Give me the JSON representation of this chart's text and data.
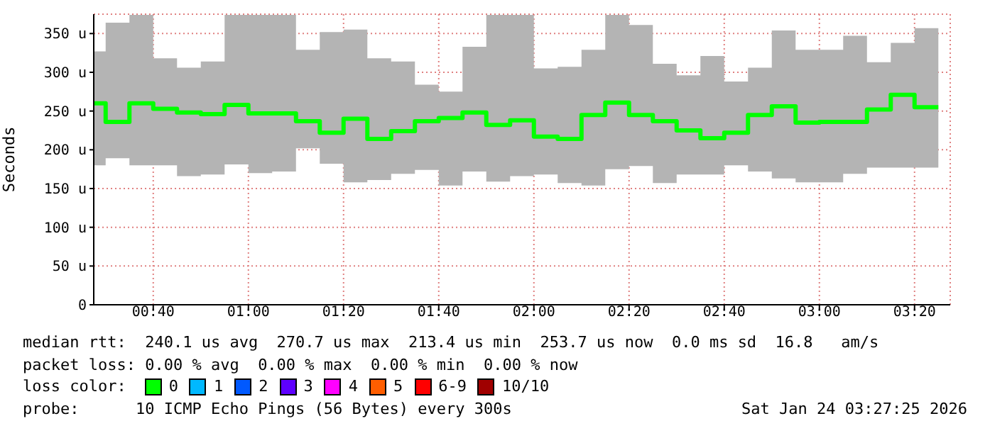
{
  "chart_data": {
    "type": "step",
    "ylabel": "Seconds",
    "x": [
      0.4583,
      0.5,
      0.5833,
      0.6667,
      0.75,
      0.8333,
      0.9167,
      1,
      1.0833,
      1.1667,
      1.25,
      1.3333,
      1.4167,
      1.5,
      1.5833,
      1.6667,
      1.75,
      1.8333,
      1.9167,
      2,
      2.0833,
      2.1667,
      2.25,
      2.3333,
      2.4167,
      2.5,
      2.5833,
      2.6667,
      2.75,
      2.8333,
      2.9167,
      3,
      3.0833,
      3.1667,
      3.25,
      3.3333,
      3.4167
    ],
    "series": [
      {
        "color": "#00ff00",
        "values": [
          260,
          236,
          260,
          253,
          248,
          246,
          258,
          247,
          247,
          237,
          222,
          240,
          214,
          224,
          237,
          241,
          248,
          232,
          238,
          217,
          214,
          245,
          261,
          245,
          237,
          225,
          215,
          222,
          245,
          256,
          235,
          236,
          236,
          252,
          271,
          255,
          255
        ],
        "lower": [
          180,
          189,
          180,
          180,
          166,
          168,
          181,
          170,
          172,
          202,
          182,
          158,
          161,
          169,
          174,
          154,
          172,
          159,
          166,
          168,
          157,
          154,
          175,
          179,
          157,
          168,
          168,
          180,
          172,
          163,
          158,
          158,
          169,
          177,
          177,
          177,
          177
        ],
        "upper": [
          327,
          364,
          374,
          318,
          306,
          314,
          374,
          374,
          374,
          329,
          352,
          355,
          318,
          314,
          284,
          275,
          333,
          374,
          374,
          305,
          307,
          329,
          374,
          361,
          311,
          296,
          321,
          288,
          306,
          354,
          329,
          329,
          347,
          313,
          338,
          357,
          357
        ]
      }
    ],
    "xlim": [
      0.4583,
      3.4583
    ],
    "xticks": [
      {
        "value": 0.6667,
        "label": "00:40"
      },
      {
        "value": 1,
        "label": "01:00"
      },
      {
        "value": 1.3333,
        "label": "01:20"
      },
      {
        "value": 1.6667,
        "label": "01:40"
      },
      {
        "value": 2,
        "label": "02:00"
      },
      {
        "value": 2.3333,
        "label": "02:20"
      },
      {
        "value": 2.6667,
        "label": "02:40"
      },
      {
        "value": 3,
        "label": "03:00"
      },
      {
        "value": 3.3333,
        "label": "03:20"
      }
    ],
    "ylim": [
      0,
      375
    ],
    "yticks": [
      0,
      {
        "value": 50,
        "label": "50 u"
      },
      {
        "value": 100,
        "label": "100 u"
      },
      {
        "value": 150,
        "label": "150 u"
      },
      {
        "value": 200,
        "label": "200 u"
      },
      {
        "value": 250,
        "label": "250 u"
      },
      {
        "value": 300,
        "label": "300 u"
      },
      {
        "value": 350,
        "label": "350 u"
      }
    ],
    "grid": true,
    "annotations": [
      "median rtt:  240.1 us avg  270.7 us max  213.4 us min  253.7 us now  0.0 ms sd  16.8   am/s",
      "packet loss: 0.00 % avg  0.00 % max  0.00 % min  0.00 % now",
      "loss color:",
      "0",
      "1",
      "2",
      "3",
      "4",
      "5",
      "6-9",
      "10/10",
      "probe:      10 ICMP Echo Pings (56 Bytes) every 300s",
      "Sat Jan 24 03:27:25 2026"
    ]
  }
}
